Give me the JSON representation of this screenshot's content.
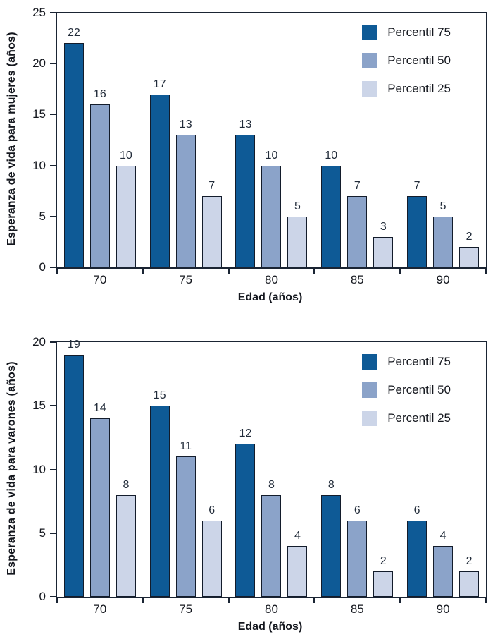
{
  "colors": {
    "axis": "#1a2433",
    "bar_border": "#131c2b",
    "text": "#14171e",
    "value_label": "#222c3a"
  },
  "charts": [
    {
      "name": "mujeres",
      "chart_data": {
        "type": "bar",
        "categories": [
          "70",
          "75",
          "80",
          "85",
          "90"
        ],
        "series": [
          {
            "name": "Percentil 75",
            "color": "#0e5a96",
            "values": [
              22,
              17,
              13,
              10,
              7
            ]
          },
          {
            "name": "Percentil 50",
            "color": "#8ba3c9",
            "values": [
              16,
              13,
              10,
              7,
              5
            ]
          },
          {
            "name": "Percentil 25",
            "color": "#ccd5e8",
            "values": [
              10,
              7,
              5,
              3,
              2
            ]
          }
        ],
        "title": "",
        "xlabel": "Edad (años)",
        "ylabel": "Esperanza de vida para mujeres (años)",
        "ylim": [
          0,
          25
        ],
        "yticks": [
          0,
          5,
          10,
          15,
          20,
          25
        ],
        "grid": false,
        "legend_position": "top-right"
      },
      "ylabel": "Esperanza de vida para mujeres (años)",
      "xlabel": "Edad (años)"
    },
    {
      "name": "varones",
      "chart_data": {
        "type": "bar",
        "categories": [
          "70",
          "75",
          "80",
          "85",
          "90"
        ],
        "series": [
          {
            "name": "Percentil 75",
            "color": "#0e5a96",
            "values": [
              19,
              15,
              12,
              8,
              6
            ]
          },
          {
            "name": "Percentil 50",
            "color": "#8ba3c9",
            "values": [
              14,
              11,
              8,
              6,
              4
            ]
          },
          {
            "name": "Percentil 25",
            "color": "#ccd5e8",
            "values": [
              8,
              6,
              4,
              2,
              2
            ]
          }
        ],
        "title": "",
        "xlabel": "Edad (años)",
        "ylabel": "Esperanza de vida para varones (años)",
        "ylim": [
          0,
          20
        ],
        "yticks": [
          0,
          5,
          10,
          15,
          20
        ],
        "grid": false,
        "legend_position": "top-right"
      },
      "ylabel": "Esperanza de vida para varones (años)",
      "xlabel": "Edad (años)"
    }
  ]
}
